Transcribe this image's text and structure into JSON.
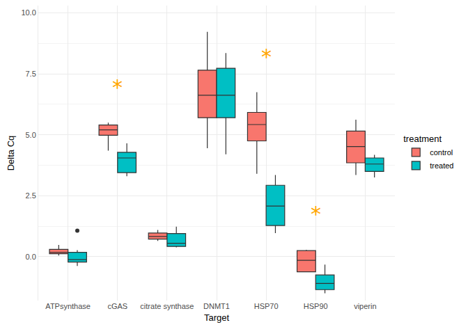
{
  "chart_data": {
    "type": "box",
    "x_label": "Target",
    "y_label": "Delta Cq",
    "legend_title": "treatment",
    "legend": "right",
    "grid": true,
    "categories": [
      "ATPsynthase",
      "cGAS",
      "citrate synthase",
      "DNMT1",
      "HSP70",
      "HSP90",
      "viperin"
    ],
    "ylim": [
      -1.8,
      10.3
    ],
    "yticks": [
      {
        "value": 0,
        "label": "0.0"
      },
      {
        "value": 2.5,
        "label": "2.5"
      },
      {
        "value": 5,
        "label": "5.0"
      },
      {
        "value": 7.5,
        "label": "7.5"
      },
      {
        "value": 10,
        "label": "10.0"
      }
    ],
    "series": [
      {
        "name": "control",
        "color": "#F8766D",
        "lower": [
          0.05,
          4.35,
          0.65,
          4.45,
          3.4,
          -0.62,
          3.35
        ],
        "q1": [
          0.12,
          4.98,
          0.72,
          5.7,
          4.75,
          -0.62,
          3.85
        ],
        "median": [
          0.18,
          5.2,
          0.83,
          6.62,
          5.42,
          -0.15,
          4.52
        ],
        "q3": [
          0.3,
          5.4,
          0.97,
          7.65,
          5.92,
          0.25,
          5.15
        ],
        "upper": [
          0.48,
          5.5,
          1.1,
          9.22,
          6.75,
          0.28,
          5.62
        ],
        "outliers": []
      },
      {
        "name": "treated",
        "color": "#00BFC4",
        "lower": [
          -0.38,
          3.3,
          0.38,
          4.2,
          0.97,
          -1.5,
          3.25
        ],
        "q1": [
          -0.22,
          3.45,
          0.42,
          5.7,
          1.28,
          -1.35,
          3.5
        ],
        "median": [
          -0.12,
          4.05,
          0.55,
          6.62,
          2.08,
          -1.1,
          3.8
        ],
        "q3": [
          0.18,
          4.28,
          0.95,
          7.73,
          2.93,
          -0.75,
          4.05
        ],
        "upper": [
          0.27,
          4.65,
          1.23,
          8.35,
          3.35,
          -0.32,
          4.18
        ],
        "outliers": [
          {
            "category": "ATPsynthase",
            "value": 1.07
          }
        ]
      }
    ],
    "annotations": [
      {
        "text": "*",
        "category": "cGAS",
        "y": 6.95,
        "color": "#FFA500"
      },
      {
        "text": "*",
        "category": "HSP70",
        "y": 8.2,
        "color": "#FFA500"
      },
      {
        "text": "*",
        "category": "HSP90",
        "y": 1.75,
        "color": "#FFA500"
      }
    ]
  }
}
